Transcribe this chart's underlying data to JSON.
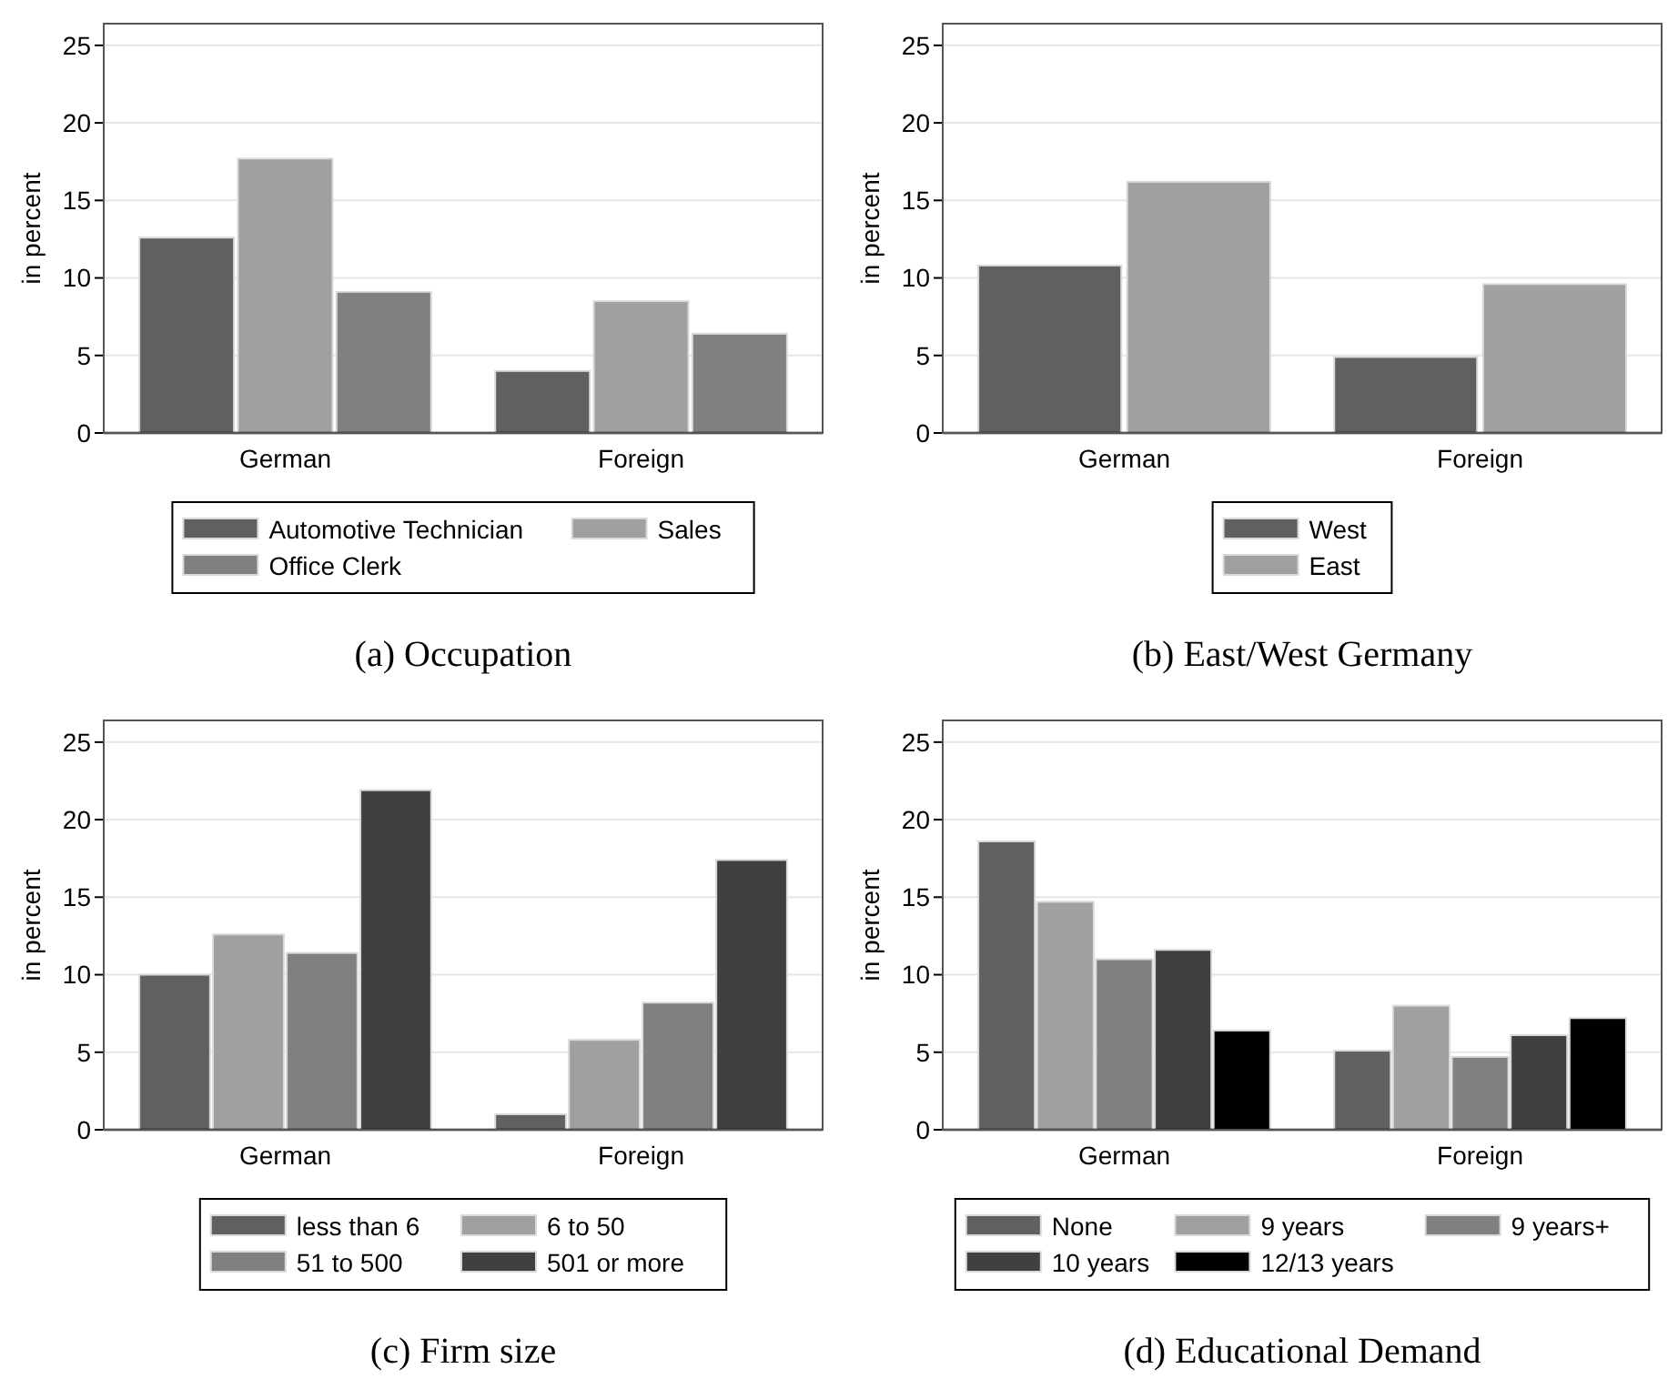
{
  "chart_data": [
    {
      "type": "bar",
      "title": "(a) Occupation",
      "ylabel": "in percent",
      "categories": [
        "German",
        "Foreign"
      ],
      "ylim": [
        0,
        26.4
      ],
      "yticks": [
        0,
        5,
        10,
        15,
        20,
        25
      ],
      "grid": "y",
      "legend": "bottom",
      "series": [
        {
          "name": "Automotive Technician",
          "color": "#606060",
          "values": [
            12.6,
            4.0
          ]
        },
        {
          "name": "Sales",
          "color": "#a0a0a0",
          "values": [
            17.7,
            8.5
          ]
        },
        {
          "name": "Office Clerk",
          "color": "#808080",
          "values": [
            9.1,
            6.4
          ]
        }
      ]
    },
    {
      "type": "bar",
      "title": "(b) East/West Germany",
      "ylabel": "in percent",
      "categories": [
        "German",
        "Foreign"
      ],
      "ylim": [
        0,
        26.4
      ],
      "yticks": [
        0,
        5,
        10,
        15,
        20,
        25
      ],
      "grid": "y",
      "legend": "bottom",
      "series": [
        {
          "name": "West",
          "color": "#606060",
          "values": [
            10.8,
            4.9
          ]
        },
        {
          "name": "East",
          "color": "#a0a0a0",
          "values": [
            16.2,
            9.6
          ]
        }
      ]
    },
    {
      "type": "bar",
      "title": "(c) Firm size",
      "ylabel": "in percent",
      "categories": [
        "German",
        "Foreign"
      ],
      "ylim": [
        0,
        26.4
      ],
      "yticks": [
        0,
        5,
        10,
        15,
        20,
        25
      ],
      "grid": "y",
      "legend": "bottom",
      "series": [
        {
          "name": "less than 6",
          "color": "#606060",
          "values": [
            10.0,
            1.0
          ]
        },
        {
          "name": "6 to 50",
          "color": "#a0a0a0",
          "values": [
            12.6,
            5.8
          ]
        },
        {
          "name": "51 to 500",
          "color": "#808080",
          "values": [
            11.4,
            8.2
          ]
        },
        {
          "name": "501 or more",
          "color": "#404040",
          "values": [
            21.9,
            17.4
          ]
        }
      ]
    },
    {
      "type": "bar",
      "title": "(d) Educational Demand",
      "ylabel": "in percent",
      "categories": [
        "German",
        "Foreign"
      ],
      "ylim": [
        0,
        26.4
      ],
      "yticks": [
        0,
        5,
        10,
        15,
        20,
        25
      ],
      "grid": "y",
      "legend": "bottom",
      "series": [
        {
          "name": "None",
          "color": "#606060",
          "values": [
            18.6,
            5.1
          ]
        },
        {
          "name": "9 years",
          "color": "#a0a0a0",
          "values": [
            14.7,
            8.0
          ]
        },
        {
          "name": "9 years+",
          "color": "#808080",
          "values": [
            11.0,
            4.7
          ]
        },
        {
          "name": "10 years",
          "color": "#404040",
          "values": [
            11.6,
            6.1
          ]
        },
        {
          "name": "12/13 years",
          "color": "#000000",
          "values": [
            6.4,
            7.2
          ]
        }
      ]
    }
  ]
}
